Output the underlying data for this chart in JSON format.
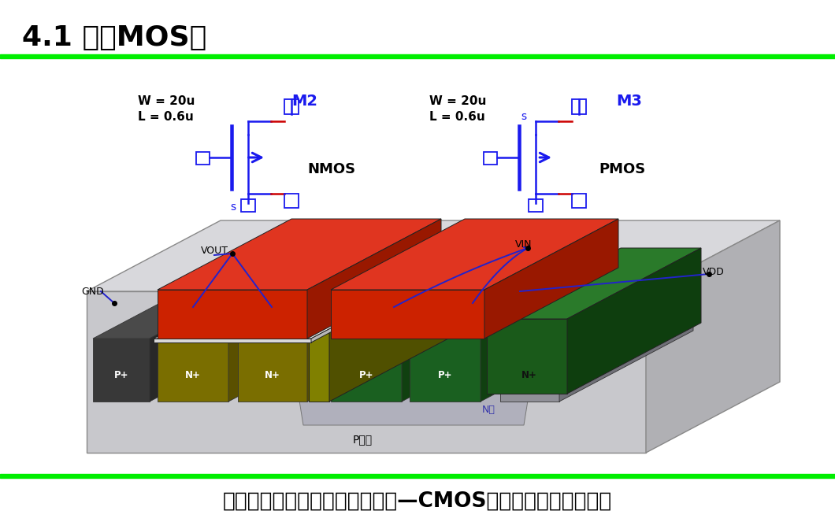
{
  "title": "4.1 单个MOS管",
  "footer": "一千个人眼中有一千个哈姆雷特—CMOS模拟集成电路也是一样",
  "bg_color": "#ffffff",
  "title_color": "#000000",
  "green_line_color": "#00ee00",
  "nmos_label": "NMOS",
  "pmos_label": "PMOS",
  "m2_label": "M2",
  "m3_label": "M3",
  "w_label": "W = 20u",
  "l_label": "L = 0.6u",
  "s_label": "s",
  "circuit_blue": "#1a1aee",
  "red_terminal": "#cc0000",
  "substrate_color": "#c8c8cc",
  "substrate_side": "#b0b0b4",
  "nwell_color": "#a8a8b8",
  "p_dark": "#404040",
  "p_dark_top": "#555555",
  "p_dark_side": "#303030",
  "olive": "#7a6e00",
  "olive_top": "#9a8e00",
  "olive_side": "#5a5000",
  "green_p": "#1e6e1e",
  "green_p_top": "#2a8a2a",
  "green_p_side": "#145514",
  "grey_n": "#9898a0",
  "grey_n_top": "#b0b0b8",
  "grey_n_side": "#808088",
  "red_metal": "#cc2200",
  "red_metal_top": "#ee3311",
  "red_metal_side": "#991800",
  "dark_green_metal": "#1a5a1a",
  "dark_green_top": "#2a7a2a",
  "dark_green_side": "#103810",
  "white_oxide": "#e8e8e8",
  "white_oxide_top": "#f5f5f5",
  "white_oxide_side": "#c8c8c8",
  "label_color": "#000000",
  "blue_wire": "#2222cc",
  "nwell_label_color": "#3333aa",
  "p_substrate_label": "#000000"
}
